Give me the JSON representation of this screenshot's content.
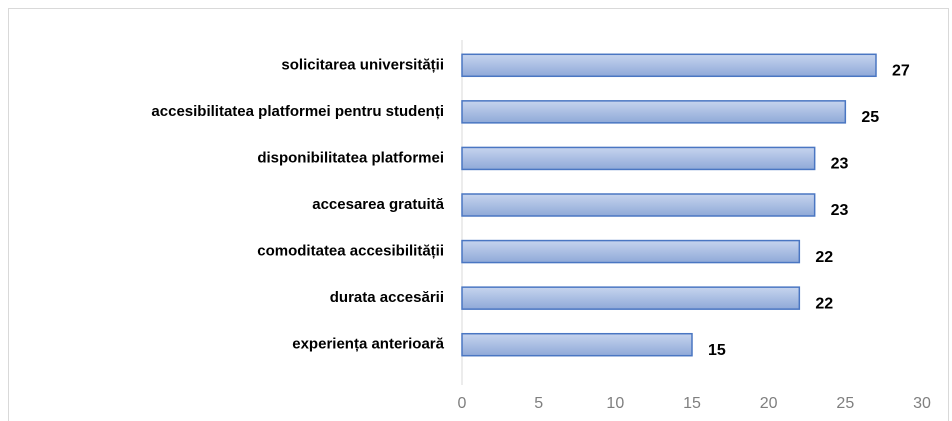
{
  "chart_data": {
    "type": "barh",
    "categories": [
      "solicitarea universității",
      "accesibilitatea platformei pentru studenți",
      "disponibilitatea platformei",
      "accesarea gratuită",
      "comoditatea accesibilității",
      "durata accesării",
      "experiența anterioară"
    ],
    "values": [
      27,
      25,
      23,
      23,
      22,
      22,
      15
    ],
    "color": "#a3b9e0",
    "xlim": [
      0,
      30
    ],
    "xticks": [
      0,
      5,
      10,
      15,
      20,
      25,
      30
    ]
  }
}
